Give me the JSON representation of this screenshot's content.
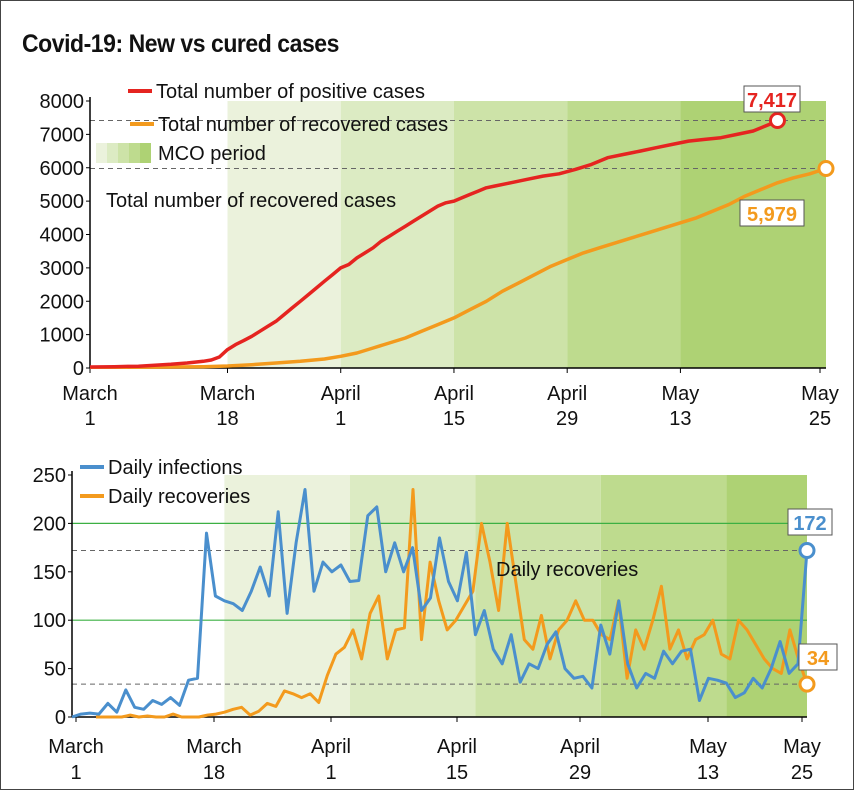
{
  "title": "Covid-19: New vs cured cases",
  "colors": {
    "positive": "#e52420",
    "recovered": "#f39a1d",
    "daily_infections": "#4a8fcd",
    "daily_recoveries": "#f39a1d",
    "mco_phases": [
      "#ebf2dc",
      "#dcebc3",
      "#cde3a8",
      "#bedb8e",
      "#aed274"
    ]
  },
  "chart_data": [
    {
      "type": "line",
      "x_ticks": [
        "March\n1",
        "March\n18",
        "April\n1",
        "April\n15",
        "April\n29",
        "May\n13",
        "May\n25"
      ],
      "x_tick_days": [
        0,
        17,
        31,
        45,
        59,
        73,
        85
      ],
      "ylim": [
        0,
        8000
      ],
      "y_ticks": [
        "0",
        "1000",
        "2000",
        "3000",
        "4000",
        "5000",
        "6000",
        "7000",
        "8000"
      ],
      "legend": [
        {
          "label": "Total number of positive cases",
          "color": "#e52420"
        },
        {
          "label": "Total number of recovered cases",
          "color": "#f39a1d"
        },
        {
          "label": "MCO period",
          "swatch": "green-gradient"
        }
      ],
      "annotation": "Total number of recovered cases",
      "end_labels": {
        "positive": "7,417",
        "recovered": "5,979"
      },
      "mco_phase_days": [
        17,
        31,
        45,
        59,
        73,
        85
      ],
      "series": [
        {
          "name": "Total number of positive cases",
          "values": [
            [
              0,
              29
            ],
            [
              3,
              40
            ],
            [
              6,
              55
            ],
            [
              8,
              83
            ],
            [
              10,
              110
            ],
            [
              12,
              150
            ],
            [
              14,
              200
            ],
            [
              15,
              240
            ],
            [
              16,
              330
            ],
            [
              17,
              550
            ],
            [
              18,
              700
            ],
            [
              19,
              820
            ],
            [
              20,
              950
            ],
            [
              21,
              1100
            ],
            [
              22,
              1250
            ],
            [
              23,
              1400
            ],
            [
              24,
              1600
            ],
            [
              25,
              1800
            ],
            [
              26,
              2000
            ],
            [
              27,
              2200
            ],
            [
              28,
              2400
            ],
            [
              29,
              2600
            ],
            [
              30,
              2800
            ],
            [
              31,
              3000
            ],
            [
              32,
              3100
            ],
            [
              33,
              3300
            ],
            [
              34,
              3450
            ],
            [
              35,
              3600
            ],
            [
              36,
              3800
            ],
            [
              37,
              3950
            ],
            [
              38,
              4100
            ],
            [
              39,
              4250
            ],
            [
              40,
              4400
            ],
            [
              41,
              4550
            ],
            [
              42,
              4700
            ],
            [
              43,
              4850
            ],
            [
              44,
              4950
            ],
            [
              45,
              5000
            ],
            [
              46,
              5100
            ],
            [
              47,
              5200
            ],
            [
              48,
              5300
            ],
            [
              49,
              5400
            ],
            [
              50,
              5450
            ],
            [
              52,
              5550
            ],
            [
              54,
              5650
            ],
            [
              56,
              5750
            ],
            [
              58,
              5820
            ],
            [
              60,
              5950
            ],
            [
              62,
              6100
            ],
            [
              64,
              6300
            ],
            [
              66,
              6400
            ],
            [
              68,
              6500
            ],
            [
              70,
              6600
            ],
            [
              72,
              6700
            ],
            [
              74,
              6800
            ],
            [
              76,
              6850
            ],
            [
              78,
              6900
            ],
            [
              80,
              7000
            ],
            [
              82,
              7100
            ],
            [
              84,
              7300
            ],
            [
              85,
              7417
            ]
          ]
        },
        {
          "name": "Total number of recovered cases",
          "values": [
            [
              0,
              20
            ],
            [
              5,
              25
            ],
            [
              10,
              30
            ],
            [
              14,
              40
            ],
            [
              17,
              60
            ],
            [
              20,
              100
            ],
            [
              23,
              150
            ],
            [
              26,
              200
            ],
            [
              29,
              270
            ],
            [
              31,
              350
            ],
            [
              33,
              450
            ],
            [
              35,
              600
            ],
            [
              37,
              750
            ],
            [
              39,
              900
            ],
            [
              41,
              1100
            ],
            [
              43,
              1300
            ],
            [
              45,
              1500
            ],
            [
              47,
              1750
            ],
            [
              49,
              2000
            ],
            [
              51,
              2300
            ],
            [
              53,
              2550
            ],
            [
              55,
              2800
            ],
            [
              57,
              3050
            ],
            [
              59,
              3250
            ],
            [
              61,
              3450
            ],
            [
              63,
              3600
            ],
            [
              65,
              3750
            ],
            [
              67,
              3900
            ],
            [
              69,
              4050
            ],
            [
              71,
              4200
            ],
            [
              73,
              4350
            ],
            [
              75,
              4500
            ],
            [
              77,
              4700
            ],
            [
              79,
              4900
            ],
            [
              81,
              5150
            ],
            [
              83,
              5350
            ],
            [
              85,
              5550
            ],
            [
              87,
              5700
            ],
            [
              89,
              5820
            ],
            [
              91,
              5979
            ]
          ]
        }
      ]
    },
    {
      "type": "line",
      "x_ticks": [
        "March\n1",
        "March\n18",
        "April\n1",
        "April\n15",
        "April\n29",
        "May\n13",
        "May\n25"
      ],
      "x_tick_days": [
        0,
        17,
        31,
        45,
        59,
        73,
        85
      ],
      "ylim": [
        0,
        250
      ],
      "y_ticks": [
        "0",
        "50",
        "100",
        "150",
        "200",
        "250"
      ],
      "legend": [
        {
          "label": "Daily infections",
          "color": "#4a8fcd"
        },
        {
          "label": "Daily recoveries",
          "color": "#f39a1d"
        }
      ],
      "annotation": "Daily recoveries",
      "end_labels": {
        "infections": "172",
        "recoveries": "34"
      },
      "mco_phase_days": [
        17,
        31,
        45,
        59,
        73,
        85
      ],
      "series": [
        {
          "name": "Daily infections",
          "values": [
            0,
            3,
            4,
            3,
            14,
            5,
            28,
            10,
            8,
            17,
            13,
            20,
            12,
            38,
            40,
            190,
            125,
            120,
            117,
            110,
            130,
            155,
            125,
            212,
            107,
            180,
            235,
            130,
            160,
            150,
            157,
            140,
            141,
            208,
            217,
            150,
            180,
            150,
            175,
            110,
            123,
            185,
            140,
            120,
            170,
            85,
            110,
            70,
            55,
            85,
            36,
            55,
            50,
            75,
            88,
            50,
            40,
            42,
            30,
            95,
            65,
            120,
            55,
            30,
            45,
            40,
            68,
            55,
            68,
            70,
            17,
            40,
            38,
            35,
            20,
            25,
            40,
            30,
            50,
            78,
            45,
            55,
            172
          ]
        },
        {
          "name": "Daily recoveries",
          "values": [
            0,
            0,
            0,
            0,
            2,
            0,
            1,
            0,
            0,
            3,
            0,
            0,
            0,
            2,
            3,
            5,
            8,
            10,
            2,
            6,
            14,
            11,
            27,
            24,
            20,
            24,
            15,
            43,
            65,
            72,
            90,
            60,
            107,
            125,
            60,
            90,
            92,
            235,
            80,
            160,
            120,
            90,
            100,
            115,
            130,
            200,
            160,
            110,
            200,
            140,
            80,
            70,
            105,
            60,
            90,
            100,
            120,
            100,
            100,
            85,
            80,
            120,
            40,
            90,
            70,
            100,
            135,
            70,
            90,
            60,
            80,
            85,
            100,
            65,
            60,
            100,
            90,
            75,
            60,
            50,
            45,
            90,
            60,
            34
          ]
        }
      ]
    }
  ]
}
